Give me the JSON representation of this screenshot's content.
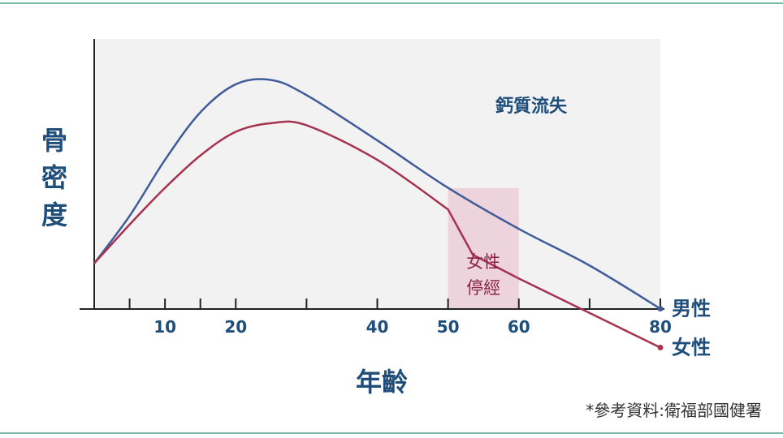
{
  "chart_data": {
    "type": "line",
    "ylabel": "骨密度",
    "xlabel": "年齡",
    "xlim": [
      0,
      80
    ],
    "x_ticks": [
      10,
      20,
      40,
      50,
      60,
      80
    ],
    "annotation": "鈣質流失",
    "menopause_band": {
      "label_line1": "女性",
      "label_line2": "停經",
      "x_start": 50,
      "x_end": 60
    },
    "series": [
      {
        "name": "男性",
        "color": "#3f5b9a",
        "x": [
          0,
          5,
          10,
          15,
          20,
          25,
          30,
          40,
          50,
          60,
          70,
          80
        ],
        "y": [
          0.08,
          0.3,
          0.56,
          0.78,
          0.91,
          0.93,
          0.86,
          0.65,
          0.43,
          0.24,
          0.07,
          -0.13
        ]
      },
      {
        "name": "女性",
        "color": "#a5324f",
        "x": [
          0,
          5,
          10,
          15,
          20,
          25,
          30,
          40,
          50,
          53.5,
          60,
          70,
          80
        ],
        "y": [
          0.08,
          0.26,
          0.43,
          0.58,
          0.69,
          0.73,
          0.72,
          0.56,
          0.33,
          0.12,
          0.01,
          -0.15,
          -0.31
        ]
      }
    ]
  },
  "source": "*參考資料:衛福部國健署"
}
